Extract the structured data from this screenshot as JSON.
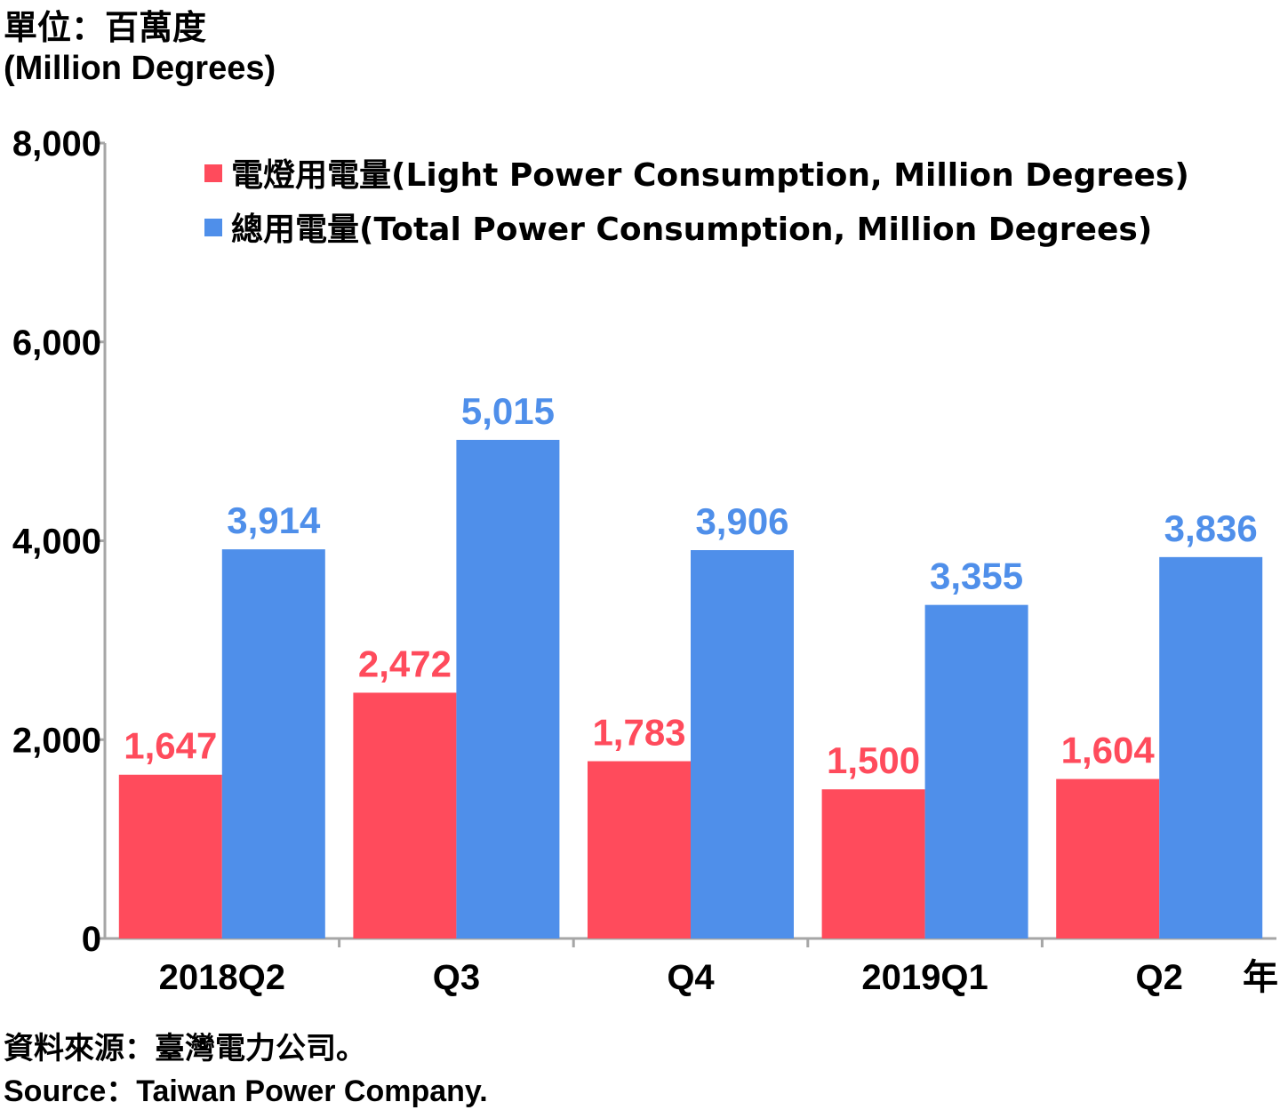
{
  "unit_zh": "單位：百萬度",
  "unit_en": "(Million Degrees)",
  "source_zh": "資料來源：臺灣電力公司。",
  "source_en": "Source：Taiwan Power Company.",
  "x_unit": "年",
  "colors": {
    "light": "#FF4B5C",
    "total": "#4F8FEA",
    "axis": "#A6A6A6"
  },
  "chart_data": {
    "type": "bar",
    "categories": [
      "2018Q2",
      "Q3",
      "Q4",
      "2019Q1",
      "Q2"
    ],
    "series": [
      {
        "name": "電燈用電量(Light Power Consumption, Million Degrees)",
        "labels": [
          "1,647",
          "2,472",
          "1,783",
          "1,500",
          "1,604"
        ],
        "values": [
          1647,
          2472,
          1783,
          1500,
          1604
        ]
      },
      {
        "name": "總用電量(Total Power Consumption, Million Degrees)",
        "labels": [
          "3,914",
          "5,015",
          "3,906",
          "3,355",
          "3,836"
        ],
        "values": [
          3914,
          5015,
          3906,
          3355,
          3836
        ]
      }
    ],
    "ylim": [
      0,
      8000
    ],
    "yticks": [
      0,
      2000,
      4000,
      6000,
      8000
    ],
    "ytick_labels": [
      "0",
      "2,000",
      "4,000",
      "6,000",
      "8,000"
    ],
    "legend": "top-left inside plot",
    "grid": false
  }
}
